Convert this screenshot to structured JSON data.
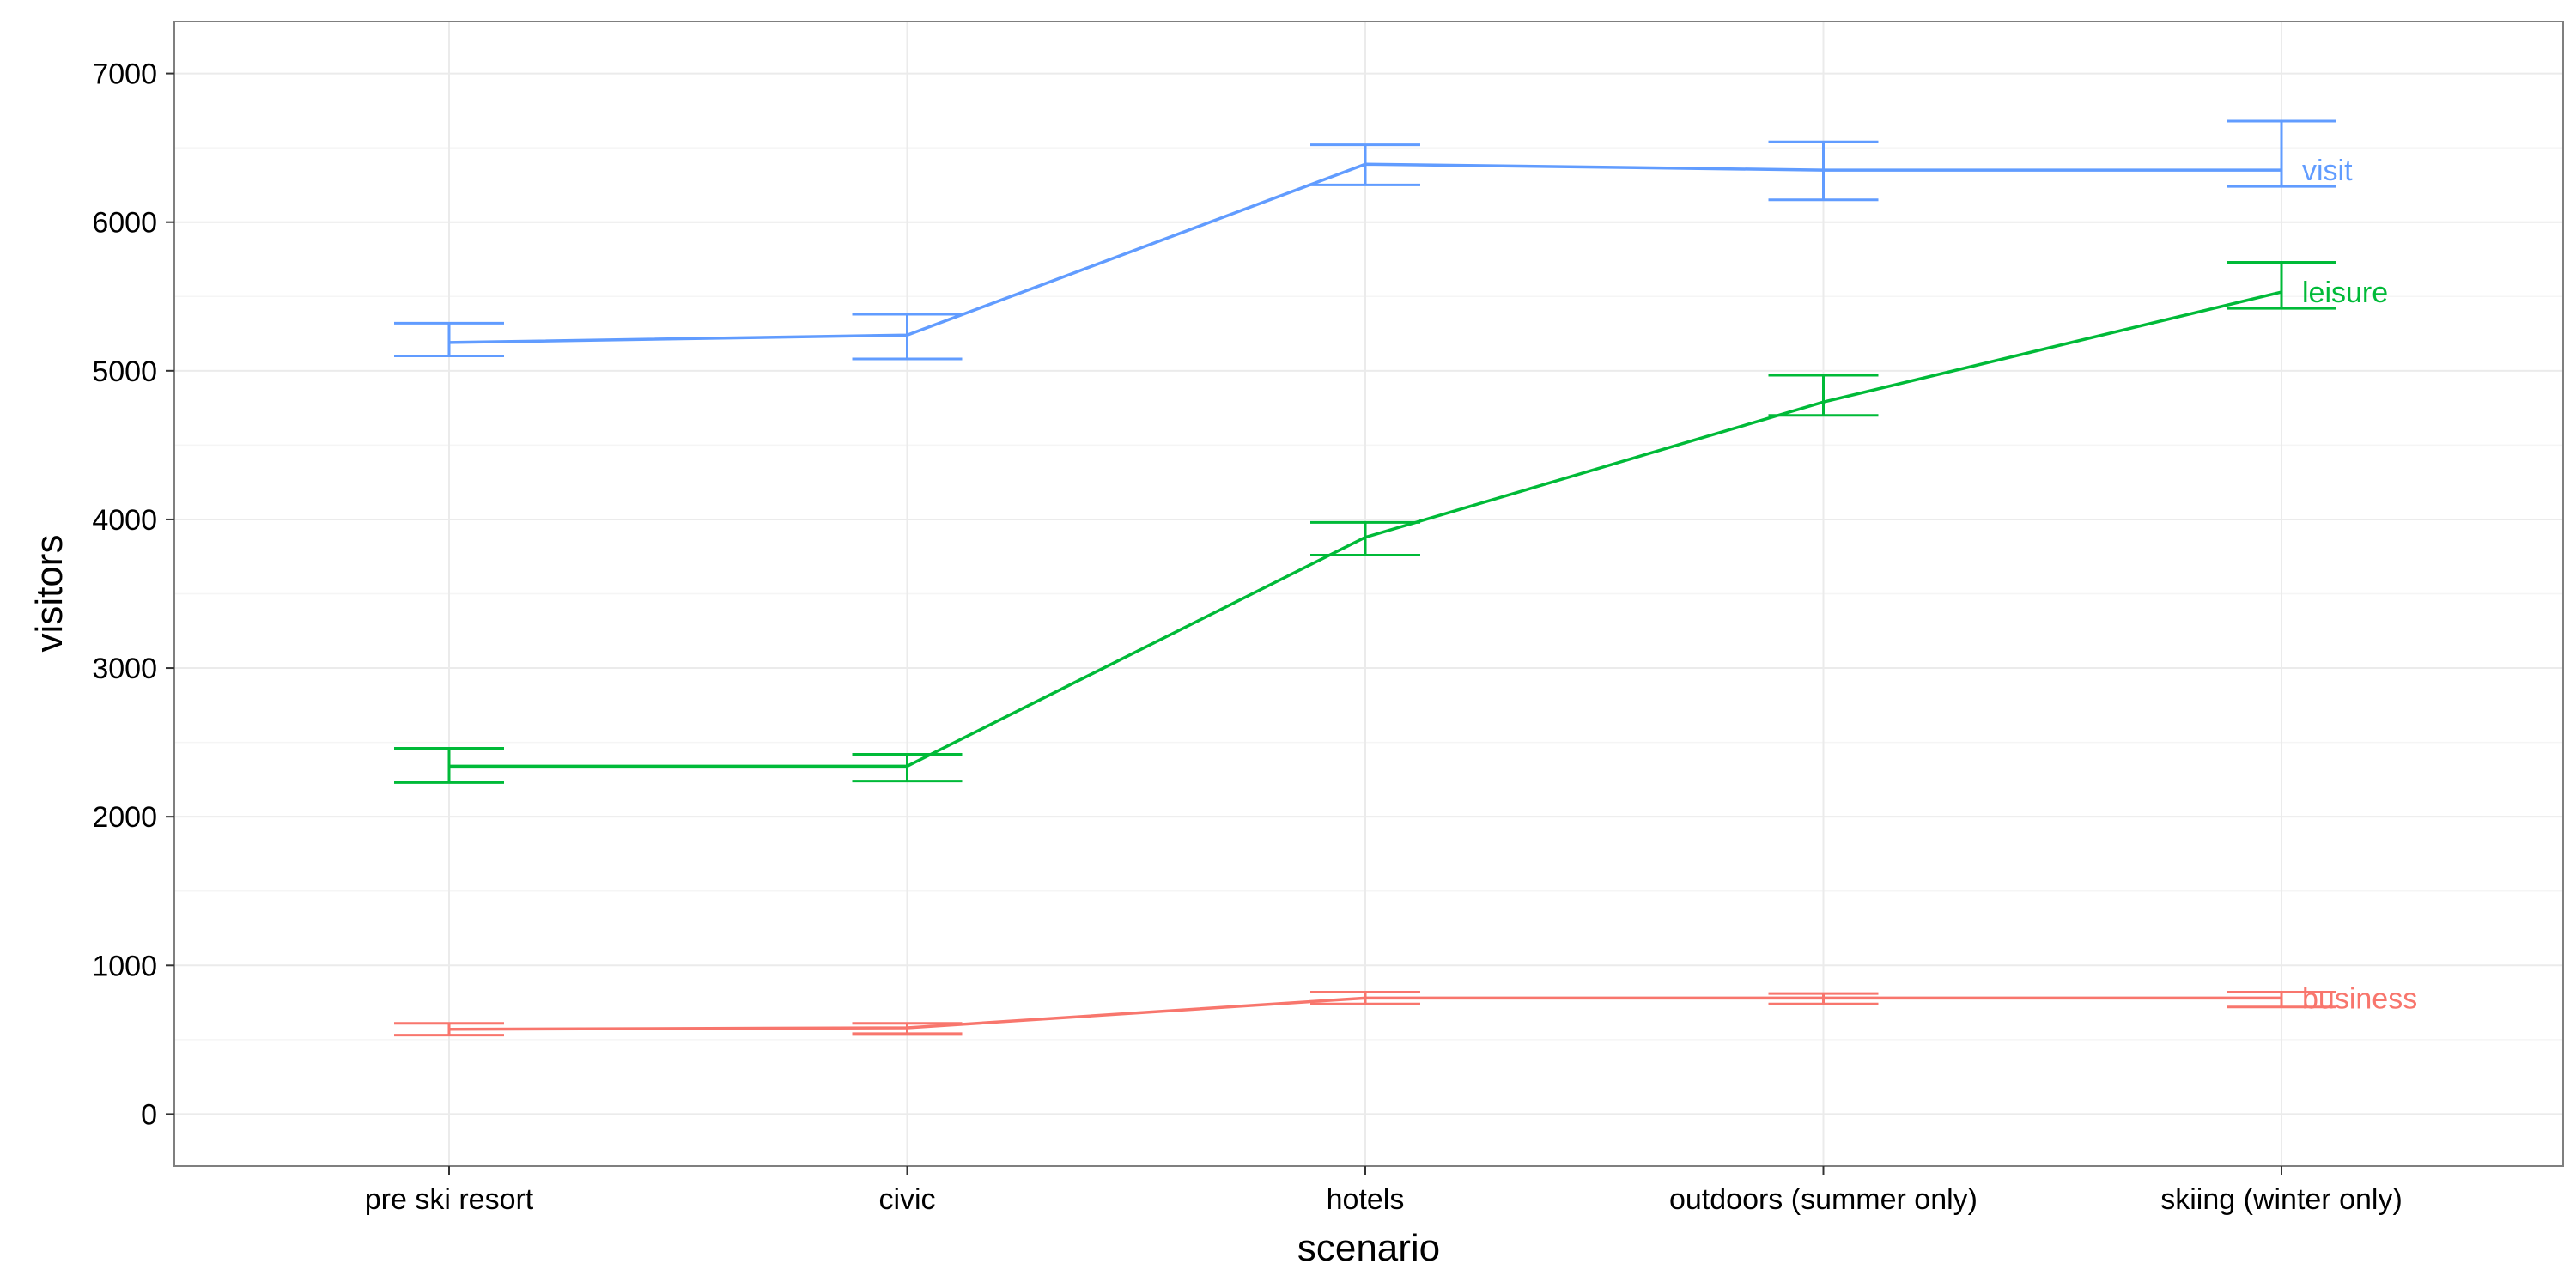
{
  "chart_data": {
    "type": "line",
    "title": "",
    "xlabel": "scenario",
    "ylabel": "visitors",
    "categories": [
      "pre ski resort",
      "civic",
      "hotels",
      "outdoors (summer only)",
      "skiing (winter only)"
    ],
    "ylim": [
      -350,
      7350
    ],
    "yticks": [
      0,
      1000,
      2000,
      3000,
      4000,
      5000,
      6000,
      7000
    ],
    "grid": true,
    "legend": "direct labels at right end of lines",
    "series": [
      {
        "name": "visit",
        "color": "#619CFF",
        "values": [
          5190,
          5240,
          6390,
          6350,
          6350
        ],
        "lower": [
          5100,
          5080,
          6250,
          6150,
          6240
        ],
        "upper": [
          5320,
          5380,
          6520,
          6540,
          6680
        ]
      },
      {
        "name": "leisure",
        "color": "#00BA38",
        "values": [
          2340,
          2340,
          3880,
          4790,
          5530
        ],
        "lower": [
          2230,
          2240,
          3760,
          4700,
          5420
        ],
        "upper": [
          2460,
          2420,
          3980,
          4970,
          5730
        ]
      },
      {
        "name": "business",
        "color": "#F8766D",
        "values": [
          570,
          580,
          780,
          780,
          780
        ],
        "lower": [
          530,
          540,
          740,
          740,
          720
        ],
        "upper": [
          610,
          610,
          820,
          810,
          820
        ]
      }
    ]
  }
}
